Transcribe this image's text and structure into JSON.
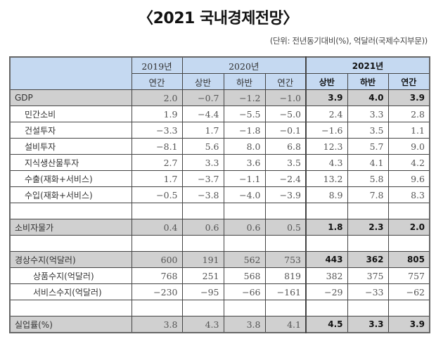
{
  "title": "〈2021 국내경제전망〉",
  "unit_note": "(단위: 전년동기대비(%), 억달러(국제수지부문))",
  "header": {
    "years": [
      "2019년",
      "2020년",
      "2021년"
    ],
    "periods": [
      "연간",
      "상반",
      "하반",
      "연간",
      "상반",
      "하반",
      "연간"
    ]
  },
  "rows": [
    {
      "label": "GDP",
      "values": [
        "2.0",
        "−0.7",
        "−1.2",
        "−1.0",
        "3.9",
        "4.0",
        "3.9"
      ]
    },
    {
      "label": "민간소비",
      "values": [
        "1.9",
        "−4.4",
        "−5.5",
        "−5.0",
        "2.4",
        "3.3",
        "2.8"
      ]
    },
    {
      "label": "건설투자",
      "values": [
        "−3.3",
        "1.7",
        "−1.8",
        "−0.1",
        "−1.6",
        "3.5",
        "1.1"
      ]
    },
    {
      "label": "설비투자",
      "values": [
        "−8.1",
        "5.6",
        "8.0",
        "6.8",
        "12.3",
        "5.7",
        "9.0"
      ]
    },
    {
      "label": "지식생산물투자",
      "values": [
        "2.7",
        "3.3",
        "3.6",
        "3.5",
        "4.3",
        "4.1",
        "4.2"
      ]
    },
    {
      "label": "수출(재화+서비스)",
      "values": [
        "1.7",
        "−3.7",
        "−1.1",
        "−2.4",
        "13.2",
        "5.8",
        "9.6"
      ]
    },
    {
      "label": "수입(재화+서비스)",
      "values": [
        "−0.5",
        "−3.8",
        "−4.0",
        "−3.9",
        "8.9",
        "7.8",
        "8.3"
      ]
    },
    {
      "label": "",
      "values": [
        "",
        "",
        "",
        "",
        "",
        "",
        ""
      ]
    },
    {
      "label": "소비자물가",
      "values": [
        "0.4",
        "0.6",
        "0.6",
        "0.5",
        "1.8",
        "2.3",
        "2.0"
      ]
    },
    {
      "label": "",
      "values": [
        "",
        "",
        "",
        "",
        "",
        "",
        ""
      ]
    },
    {
      "label": "경상수지(억달러)",
      "values": [
        "600",
        "191",
        "562",
        "753",
        "443",
        "362",
        "805"
      ]
    },
    {
      "label": "상품수지(억달러)",
      "values": [
        "768",
        "251",
        "568",
        "819",
        "382",
        "375",
        "757"
      ]
    },
    {
      "label": "서비스수지(억달러)",
      "values": [
        "−230",
        "−95",
        "−66",
        "−161",
        "−29",
        "−33",
        "−62"
      ]
    },
    {
      "label": "",
      "values": [
        "",
        "",
        "",
        "",
        "",
        "",
        ""
      ]
    },
    {
      "label": "실업률(%)",
      "values": [
        "3.8",
        "4.3",
        "3.8",
        "4.1",
        "4.5",
        "3.3",
        "3.9"
      ]
    }
  ],
  "colors": {
    "header_bg": "#c5d9f1",
    "highlight_row_bg": "#d0d0d0"
  }
}
